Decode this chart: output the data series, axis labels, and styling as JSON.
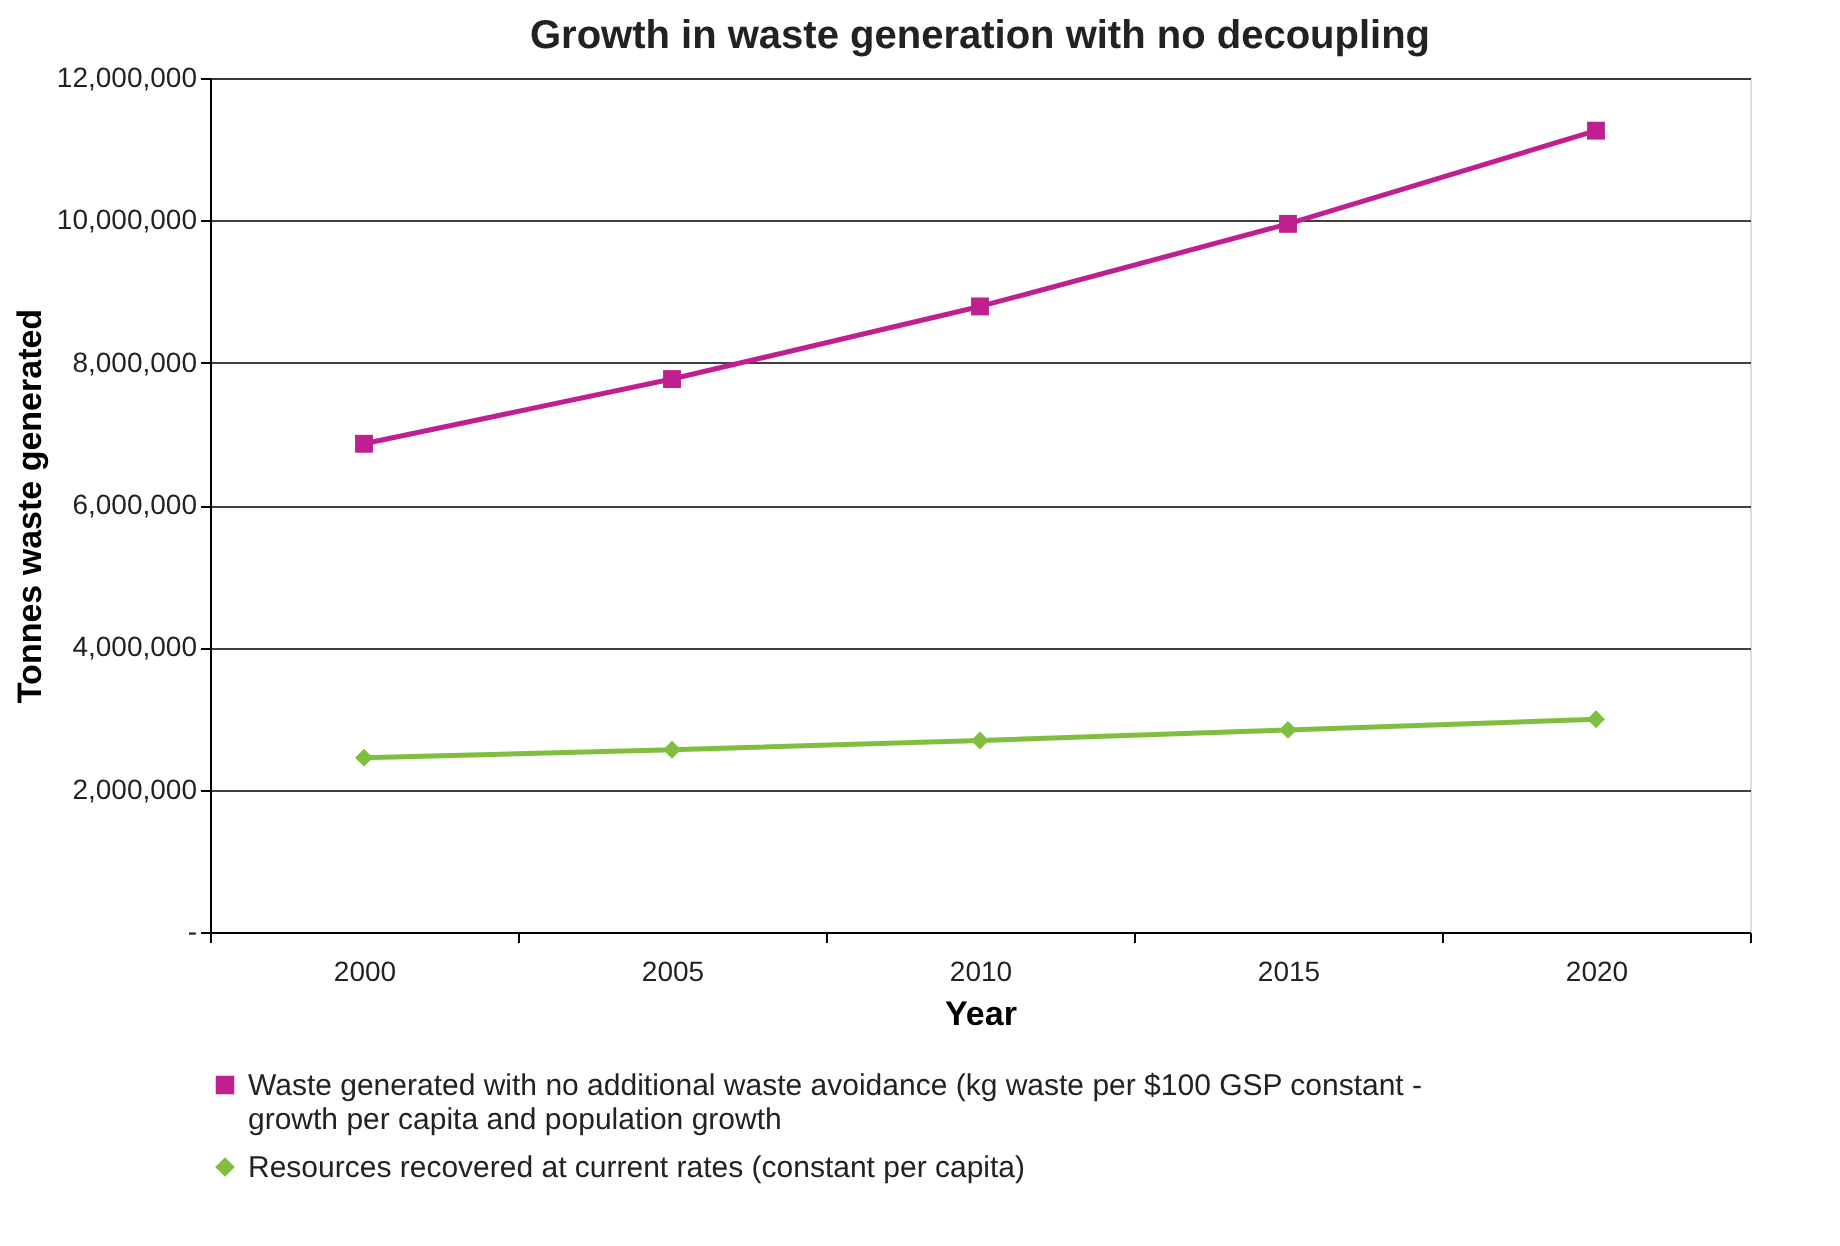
{
  "chart_data": {
    "type": "line",
    "title": "Growth in waste generation with no decoupling",
    "xlabel": "Year",
    "ylabel": "Tonnes waste generated",
    "categories": [
      "2000",
      "2005",
      "2010",
      "2015",
      "2020"
    ],
    "series": [
      {
        "name": "Waste generated with no additional waste avoidance (kg waste per $100 GSP constant - growth per capita and population growth",
        "color": "#c0208f",
        "marker": "square",
        "values": [
          6860000,
          7770000,
          8790000,
          9950000,
          11260000
        ]
      },
      {
        "name": "Resources recovered at current rates (constant per capita)",
        "color": "#7fbf3f",
        "marker": "diamond",
        "values": [
          2450000,
          2560000,
          2690000,
          2840000,
          2990000
        ]
      }
    ],
    "ylim": [
      0,
      12000000
    ],
    "yticks": [
      {
        "value": 0,
        "label": "-"
      },
      {
        "value": 2000000,
        "label": "2,000,000"
      },
      {
        "value": 4000000,
        "label": "4,000,000"
      },
      {
        "value": 6000000,
        "label": "6,000,000"
      },
      {
        "value": 8000000,
        "label": "8,000,000"
      },
      {
        "value": 10000000,
        "label": "10,000,000"
      },
      {
        "value": 12000000,
        "label": "12,000,000"
      }
    ],
    "grid": "y",
    "legend": "bottom",
    "line_style": "solid"
  }
}
